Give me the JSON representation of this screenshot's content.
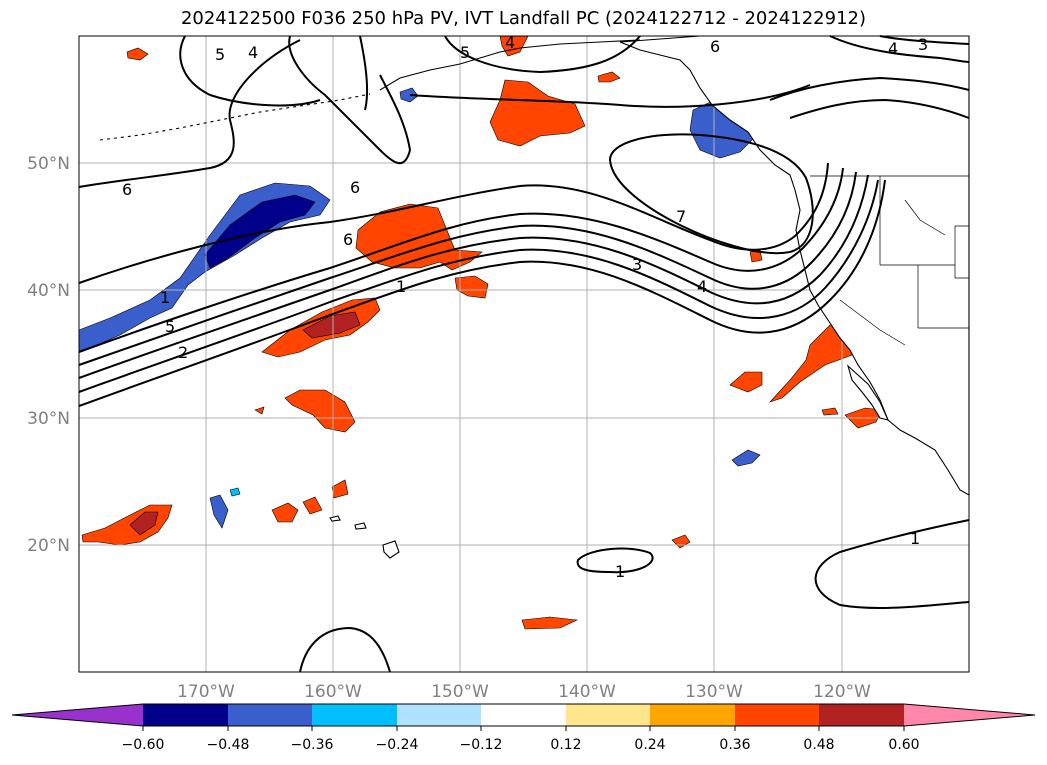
{
  "title": "2024122500 F036 250 hPa PV, IVT Landfall PC (2024122712 - 2024122912)",
  "map": {
    "latitude_labels": [
      "50°N",
      "40°N",
      "30°N",
      "20°N"
    ],
    "longitude_labels": [
      "170°W",
      "160°W",
      "150°W",
      "140°W",
      "130°W",
      "120°W"
    ],
    "gridlines": true,
    "ocean_color": "#ffffff",
    "coastline_color": "#000000"
  },
  "contours": {
    "labels": [
      "5",
      "4",
      "5",
      "4",
      "6",
      "4",
      "3",
      "6",
      "6",
      "7",
      "6",
      "1",
      "5",
      "2",
      "3",
      "4",
      "1",
      "1",
      "1"
    ]
  },
  "colorbar": {
    "tick_labels": [
      "−0.60",
      "−0.48",
      "−0.36",
      "−0.24",
      "−0.12",
      "0.12",
      "0.24",
      "0.36",
      "0.48",
      "0.60"
    ],
    "colors": [
      "#9932cc",
      "#00008b",
      "#3a5fcd",
      "#00bfff",
      "#b0e2ff",
      "#ffffff",
      "#ffe68c",
      "#ffa500",
      "#ff4500",
      "#b22222",
      "#ff88aa"
    ],
    "extend": "both"
  },
  "shading_colors": {
    "neg_light": "#00bfff",
    "neg_mid": "#3a5fcd",
    "neg_dark": "#00008b",
    "pos_light": "#ffe68c",
    "pos_mid": "#ff4500",
    "pos_dark": "#b22222"
  }
}
